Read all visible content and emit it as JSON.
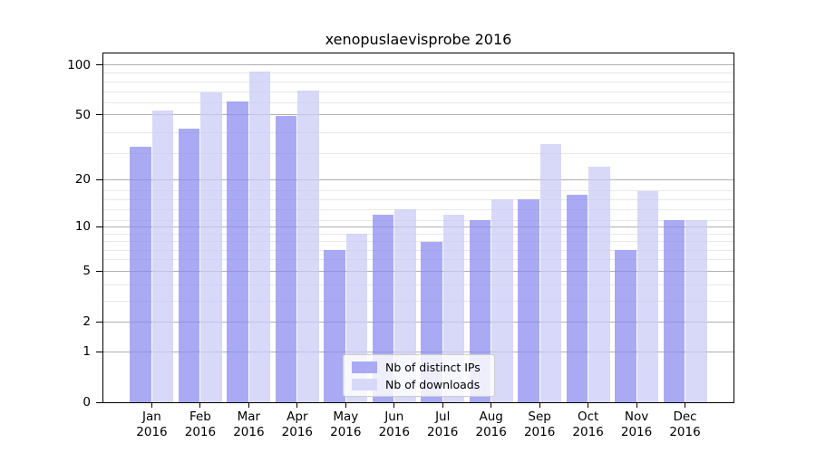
{
  "chart_data": {
    "type": "bar",
    "title": "xenopuslaevisprobe 2016",
    "categories": [
      "Jan",
      "Feb",
      "Mar",
      "Apr",
      "May",
      "Jun",
      "Jul",
      "Aug",
      "Sep",
      "Oct",
      "Nov",
      "Dec"
    ],
    "x_year": "2016",
    "series": [
      {
        "name": "Nb of distinct IPs",
        "color": "#8e8ef0",
        "alpha": 0.75,
        "legend_color": "#aaaaf4",
        "values": [
          32,
          41,
          60,
          49,
          7,
          12,
          8,
          11,
          15,
          16,
          7,
          11
        ]
      },
      {
        "name": "Nb of downloads",
        "color": "#cbcbf5",
        "alpha": 0.75,
        "legend_color": "#d8d8f8",
        "values": [
          53,
          68,
          91,
          70,
          9,
          13,
          12,
          15,
          33,
          24,
          17,
          11
        ]
      }
    ],
    "yscale": "log1p",
    "ylim": [
      0,
      117
    ],
    "yticks": [
      0,
      1,
      2,
      5,
      10,
      20,
      50,
      100
    ],
    "minor_gridlines": [
      3,
      4,
      6,
      7,
      8,
      9,
      11,
      13,
      15,
      17,
      29,
      39,
      59,
      69,
      79,
      89
    ],
    "grid": "horizontal",
    "legend_position": "bottom-center",
    "colors": {
      "major_grid": "#b0b0b0",
      "minor_grid": "#e8e8e8",
      "axis": "#000000",
      "background": "#ffffff"
    }
  }
}
